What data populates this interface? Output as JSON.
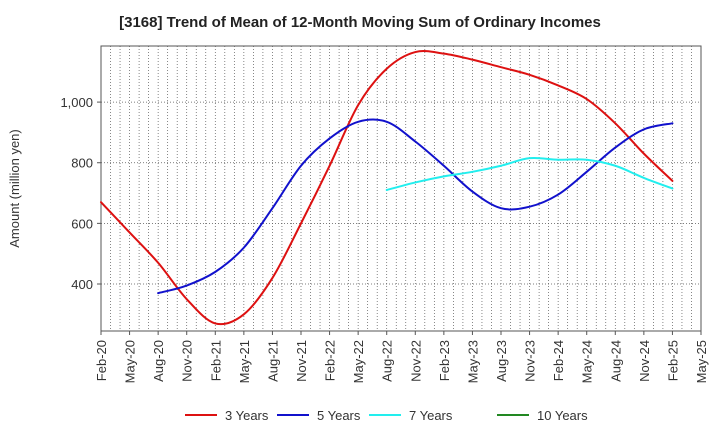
{
  "chart_data": {
    "type": "line",
    "title": "[3168]  Trend of Mean of 12-Month Moving Sum of Ordinary Incomes",
    "xlabel": "",
    "ylabel": "Amount (million yen)",
    "ylim": [
      245,
      1185
    ],
    "yticks": [
      400,
      600,
      800,
      1000
    ],
    "ytick_labels": [
      "400",
      "600",
      "800",
      "1,000"
    ],
    "categories": [
      "Feb-20",
      "May-20",
      "Aug-20",
      "Nov-20",
      "Feb-21",
      "May-21",
      "Aug-21",
      "Nov-21",
      "Feb-22",
      "May-22",
      "Aug-22",
      "Nov-22",
      "Feb-23",
      "May-23",
      "Aug-23",
      "Nov-23",
      "Feb-24",
      "May-24",
      "Aug-24",
      "Nov-24",
      "Feb-25",
      "May-25"
    ],
    "grid": true,
    "legend_position": "bottom",
    "series": [
      {
        "name": "3 Years",
        "color": "#dd1111",
        "values": [
          670,
          570,
          470,
          350,
          270,
          300,
          420,
          600,
          790,
          990,
          1110,
          1165,
          1160,
          1140,
          1115,
          1090,
          1055,
          1010,
          930,
          830,
          740,
          null
        ]
      },
      {
        "name": "5 Years",
        "color": "#1111cc",
        "values": [
          null,
          null,
          370,
          395,
          440,
          520,
          650,
          790,
          880,
          935,
          935,
          870,
          790,
          705,
          650,
          655,
          695,
          770,
          850,
          910,
          930,
          null
        ]
      },
      {
        "name": "7 Years",
        "color": "#22eeee",
        "values": [
          null,
          null,
          null,
          null,
          null,
          null,
          null,
          null,
          null,
          null,
          710,
          735,
          755,
          770,
          790,
          815,
          810,
          810,
          790,
          750,
          715,
          null
        ]
      },
      {
        "name": "10 Years",
        "color": "#228822",
        "values": [
          null,
          null,
          null,
          null,
          null,
          null,
          null,
          null,
          null,
          null,
          null,
          null,
          null,
          null,
          null,
          null,
          null,
          null,
          null,
          null,
          null,
          null
        ]
      }
    ]
  }
}
